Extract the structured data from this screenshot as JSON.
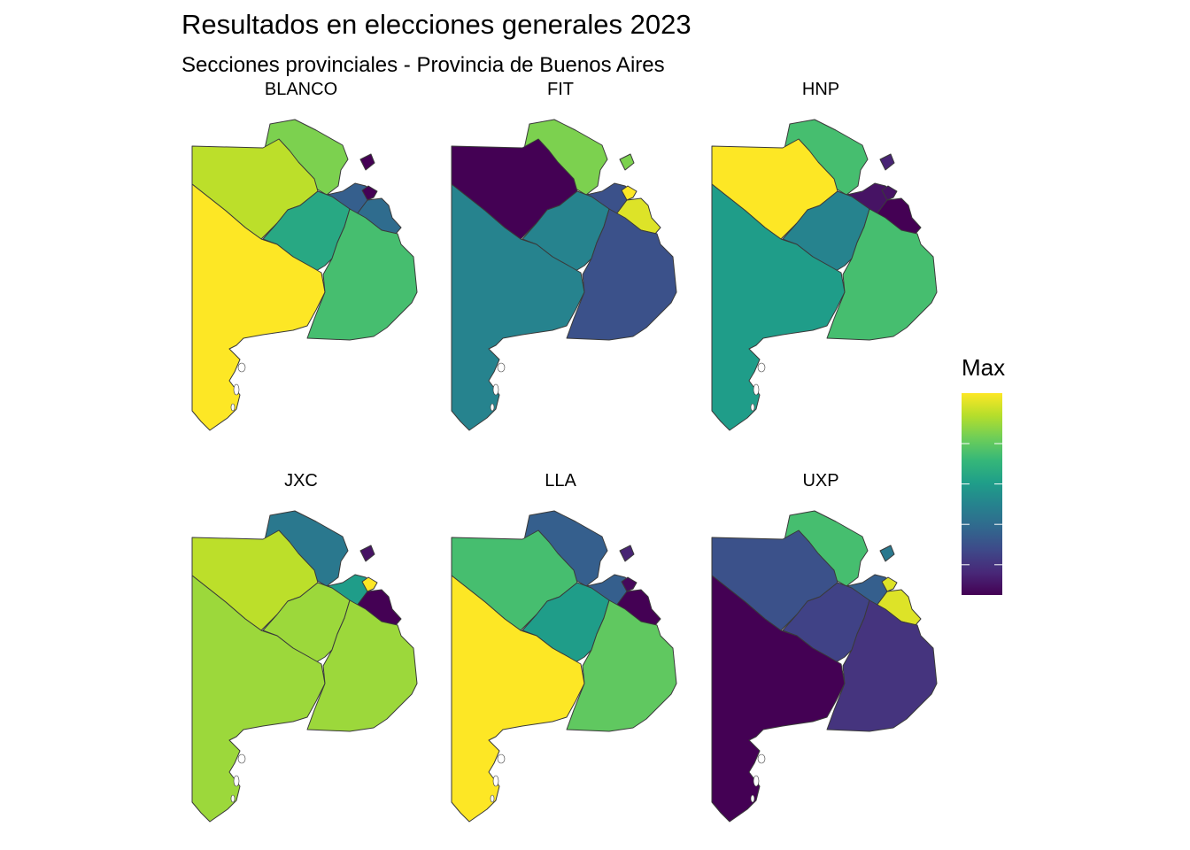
{
  "title": "Resultados en elecciones generales 2023",
  "subtitle": "Secciones provinciales - Provincia de Buenos Aires",
  "legend": {
    "title": "Max"
  },
  "palette": [
    "#440154",
    "#482878",
    "#3e4989",
    "#31688e",
    "#26828e",
    "#1f9e89",
    "#35b779",
    "#6ece58",
    "#b5de2b",
    "#fde725"
  ],
  "sections": [
    "seccion-1",
    "seccion-2",
    "seccion-3",
    "seccion-4",
    "seccion-5",
    "seccion-6",
    "seccion-7",
    "seccion-8",
    "capital-la-plata"
  ],
  "panels": [
    {
      "label": "BLANCO",
      "levels": [
        0.3,
        0.8,
        0.35,
        0.9,
        0.6,
        1.0,
        0.7,
        0.0,
        0.0
      ]
    },
    {
      "label": "FIT",
      "levels": [
        0.25,
        0.8,
        0.95,
        0.0,
        0.45,
        0.45,
        0.25,
        1.0,
        0.8
      ]
    },
    {
      "label": "HNP",
      "levels": [
        0.05,
        0.7,
        0.0,
        1.0,
        0.45,
        0.55,
        0.7,
        0.05,
        0.1
      ]
    },
    {
      "label": "JXC",
      "levels": [
        0.55,
        0.4,
        0.0,
        0.9,
        0.85,
        0.85,
        0.85,
        1.0,
        0.05
      ]
    },
    {
      "label": "LLA",
      "levels": [
        0.3,
        0.3,
        0.0,
        0.7,
        0.55,
        1.0,
        0.75,
        0.02,
        0.1
      ]
    },
    {
      "label": "UXP",
      "levels": [
        0.3,
        0.7,
        0.95,
        0.25,
        0.2,
        0.0,
        0.15,
        0.95,
        0.4
      ]
    }
  ]
}
